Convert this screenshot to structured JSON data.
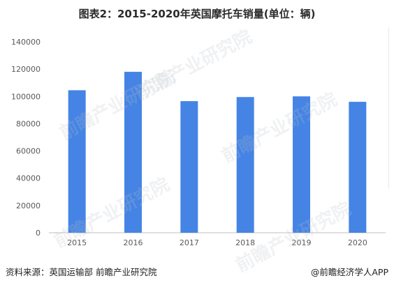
{
  "title": "图表2：2015-2020年英国摩托车销量(单位：辆)",
  "source": "资料来源：英国运输部 前瞻产业研究院",
  "brand": "@前瞻经济学人APP",
  "watermark": "前瞻产业研究院",
  "colors": {
    "bar": "#4584E4",
    "axis": "#bfbfbf",
    "text": "#595959"
  },
  "chart_data": {
    "type": "bar",
    "categories": [
      "2015",
      "2016",
      "2017",
      "2018",
      "2019",
      "2020"
    ],
    "values": [
      104500,
      118000,
      96500,
      99500,
      100000,
      96000
    ],
    "yticks": [
      "0",
      "20000",
      "40000",
      "60000",
      "80000",
      "100000",
      "120000",
      "140000"
    ],
    "ylim": [
      0,
      140000
    ],
    "grid": false,
    "legend": "none",
    "title": "图表2：2015-2020年英国摩托车销量(单位：辆)",
    "xlabel": "",
    "ylabel": ""
  }
}
